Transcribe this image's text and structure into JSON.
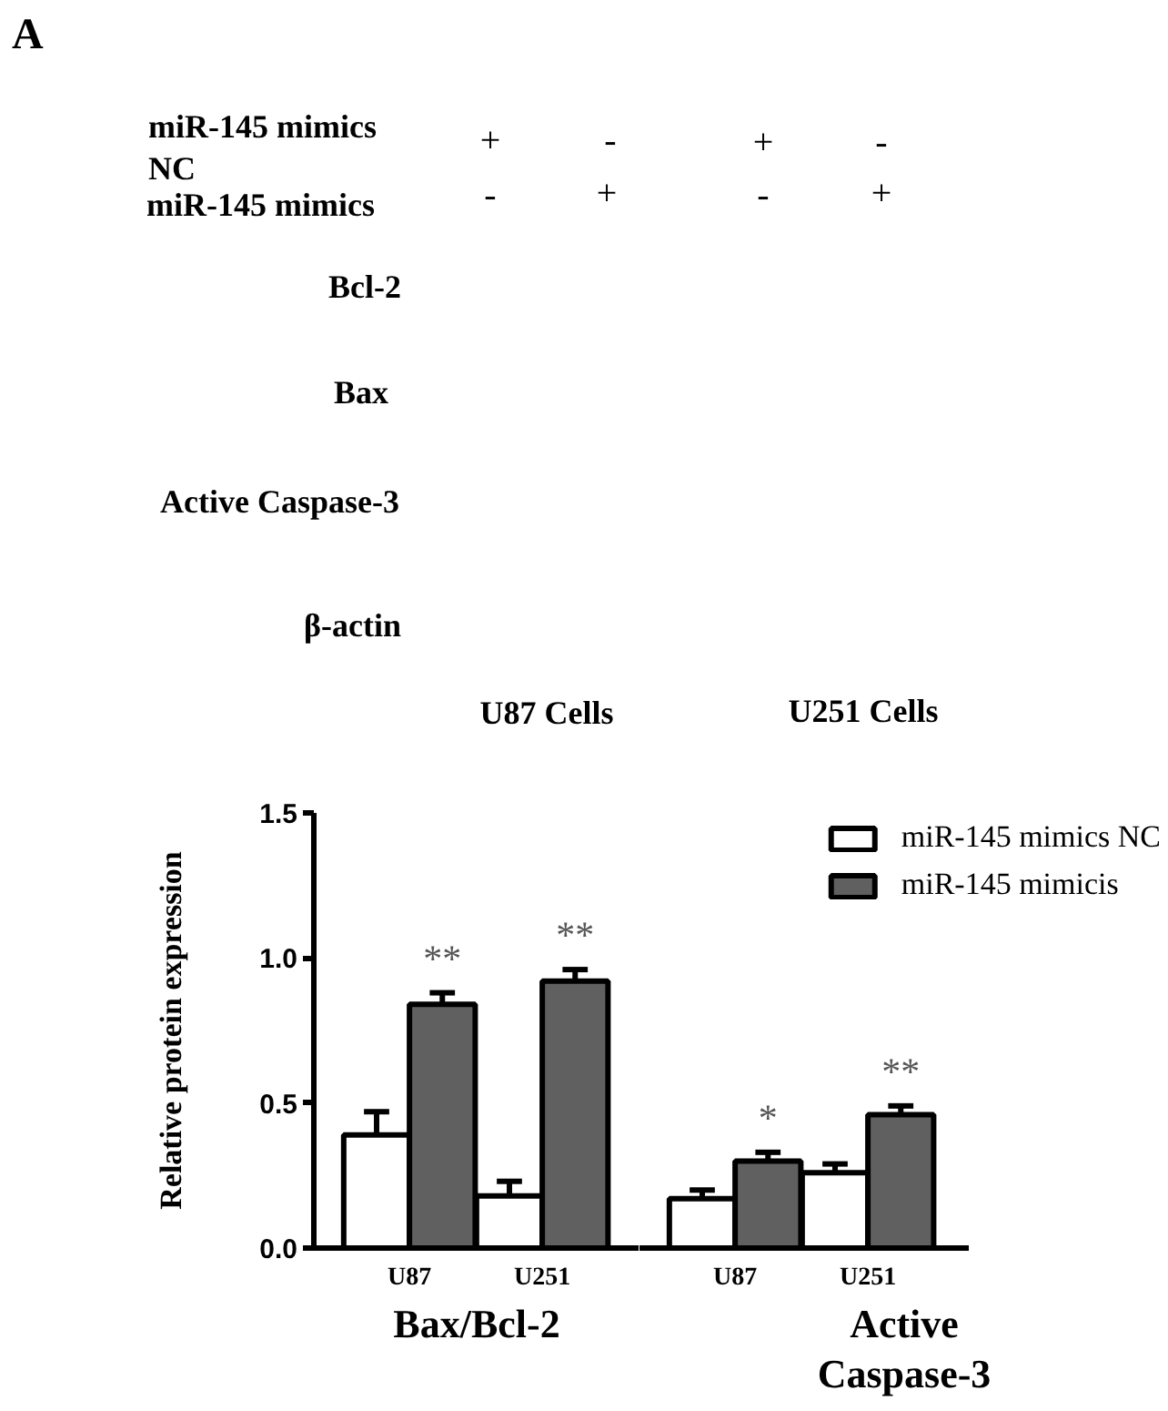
{
  "chart_data": [
    {
      "type": "other",
      "title": "A",
      "annotations": [
        "miR-145 mimics",
        "NC",
        "miR-145 mimics",
        "+",
        "-",
        "+",
        "-",
        "-",
        "+",
        "-",
        "+",
        "Bcl-2",
        "Bax",
        "Active Caspase-3",
        "β-actin",
        "U87 Cells",
        "U251 Cells"
      ]
    },
    {
      "type": "bar",
      "xlabel": "Bax/Bcl-2",
      "ylabel": "Relative protein expression",
      "categories": [
        "U87",
        "U251"
      ],
      "series": [
        {
          "color": "#ffffff",
          "values": [
            0.39,
            0.18
          ],
          "errors": [
            0.08,
            0.05
          ]
        },
        {
          "color": "#606060",
          "values": [
            0.84,
            0.92
          ],
          "errors": [
            0.04,
            0.04
          ]
        }
      ],
      "ylim": [
        0,
        1.5
      ],
      "yticks": [
        {
          "value": 0,
          "label": "0.0"
        },
        0.5,
        {
          "value": 1,
          "label": "1.0"
        },
        1.5
      ],
      "annotations": [
        "**",
        "**"
      ]
    },
    {
      "type": "bar",
      "xlabel": "Active Caspase-3",
      "categories": [
        "U87",
        "U251"
      ],
      "series": [
        {
          "name": "miR-145 mimics NC",
          "color": "#ffffff",
          "values": [
            0.17,
            0.26
          ],
          "errors": [
            0.03,
            0.03
          ]
        },
        {
          "name": "miR-145 mimicis",
          "color": "#606060",
          "values": [
            0.3,
            0.46
          ],
          "errors": [
            0.03,
            0.03
          ]
        }
      ],
      "ylim": [
        0,
        1.5
      ],
      "tick_labels": "x",
      "legend": "top right",
      "annotations": [
        "*",
        "**"
      ]
    }
  ]
}
